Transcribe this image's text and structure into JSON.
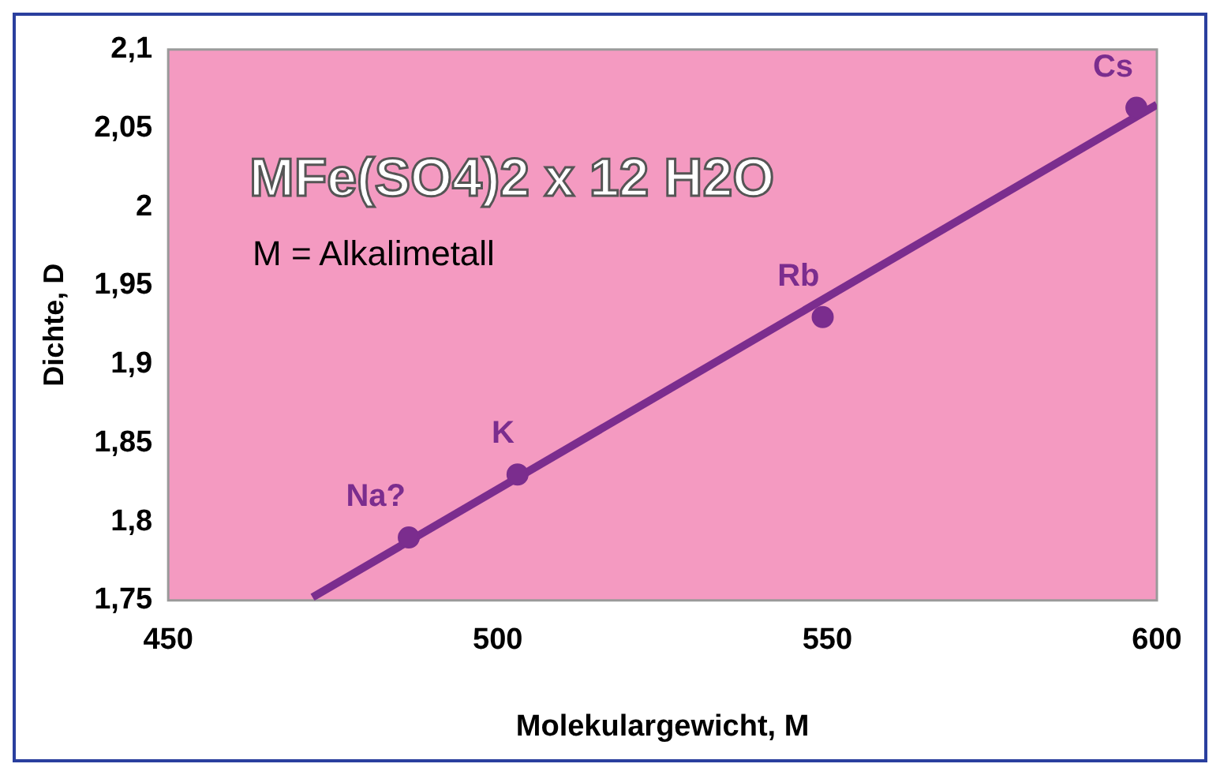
{
  "chart_data": {
    "type": "scatter",
    "xlabel": "Molekulargewicht, M",
    "ylabel": "Dichte, D",
    "x": [
      486.5,
      503,
      549.3,
      596.9
    ],
    "series": [
      {
        "color": "#7b2d8e",
        "values": [
          1.79,
          1.83,
          1.93,
          2.063
        ]
      },
      {
        "type": "line",
        "color": "#7b2d8e",
        "x": [
          471.9,
          600
        ],
        "values": [
          1.752,
          2.065
        ],
        "marker": "none"
      }
    ],
    "xlim": [
      450,
      600
    ],
    "xticks": [
      450,
      500,
      550,
      600
    ],
    "ylim": [
      1.75,
      2.1
    ],
    "yticks": [
      {
        "value": 1.75,
        "label": "1,75"
      },
      {
        "value": 1.8,
        "label": "1,8"
      },
      {
        "value": 1.85,
        "label": "1,85"
      },
      {
        "value": 1.9,
        "label": "1,9"
      },
      {
        "value": 1.95,
        "label": "1,95"
      },
      {
        "value": 2,
        "label": "2"
      },
      {
        "value": 2.05,
        "label": "2,05"
      },
      {
        "value": 2.1,
        "label": "2,1"
      }
    ],
    "grid": false,
    "legend": false,
    "marker": "circle",
    "annotations": [
      "MFe(SO4)2 x 12 H2O",
      "M = Alkalimetall",
      {
        "text": "Na?",
        "x": 486.5,
        "y": 1.79
      },
      {
        "text": "K",
        "x": 503,
        "y": 1.83
      },
      {
        "text": "Rb",
        "x": 549.3,
        "y": 1.93
      },
      {
        "text": "Cs",
        "x": 596.9,
        "y": 2.063
      }
    ]
  }
}
